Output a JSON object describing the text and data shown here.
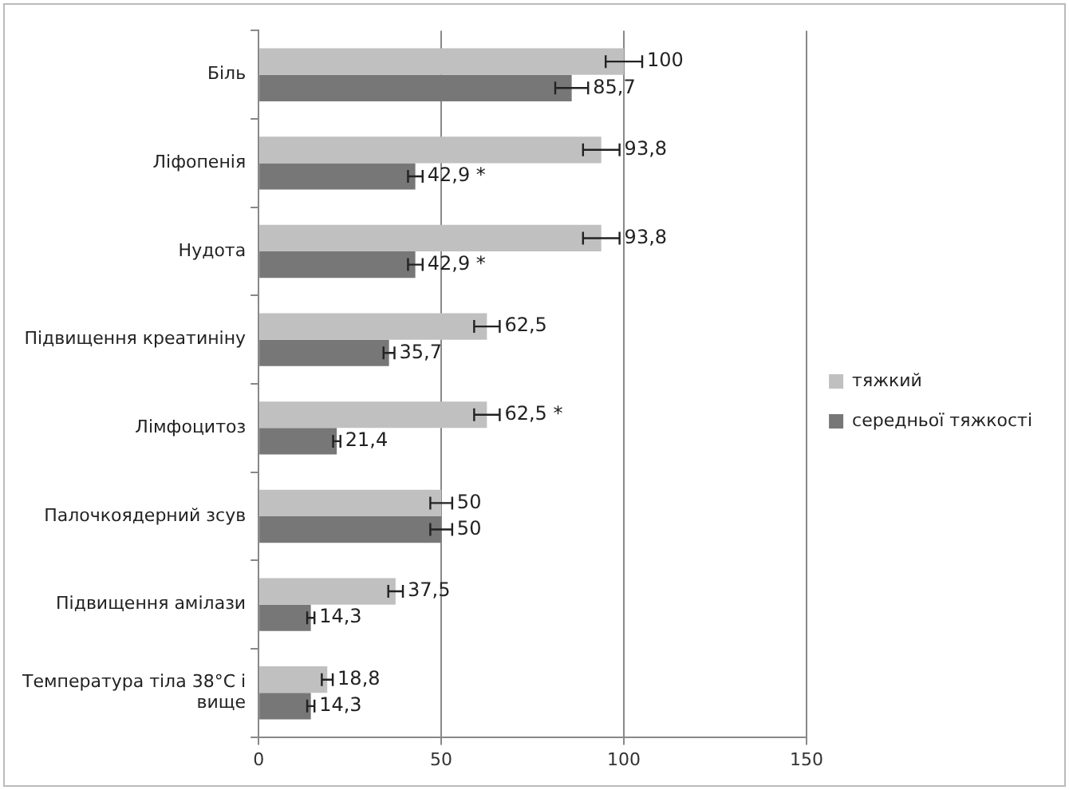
{
  "chart_data": {
    "type": "bar",
    "orientation": "horizontal",
    "categories": [
      "Біль",
      "Ліфопенія",
      "Нудота",
      "Підвищення креатиніну",
      "Лімфоцитоз",
      "Палочкоядерний зсув",
      "Підвищення амілази",
      "Температура тіла 38°C і вище"
    ],
    "series": [
      {
        "name": "тяжкий",
        "color": "#c0c0c0",
        "values": [
          100,
          93.8,
          93.8,
          62.5,
          62.5,
          50,
          37.5,
          18.8
        ],
        "errors": [
          5,
          5,
          5,
          3.5,
          3.5,
          3,
          2,
          1.5
        ],
        "value_labels": [
          "100",
          "93,8",
          "93,8",
          "62,5",
          "62,5 *",
          "50",
          "37,5",
          "18,8"
        ]
      },
      {
        "name": "середньої тяжкості",
        "color": "#777777",
        "values": [
          85.7,
          42.9,
          42.9,
          35.7,
          21.4,
          50,
          14.3,
          14.3
        ],
        "errors": [
          4.5,
          2,
          2,
          1.5,
          1,
          3,
          1,
          1
        ],
        "value_labels": [
          "85,7",
          "42,9 *",
          "42,9 *",
          "35,7",
          "21,4",
          "50",
          "14,3",
          "14,3"
        ]
      }
    ],
    "xlim": [
      0,
      150
    ],
    "xticks": [
      0,
      50,
      100,
      150
    ],
    "grid": "x",
    "legend": "right"
  }
}
